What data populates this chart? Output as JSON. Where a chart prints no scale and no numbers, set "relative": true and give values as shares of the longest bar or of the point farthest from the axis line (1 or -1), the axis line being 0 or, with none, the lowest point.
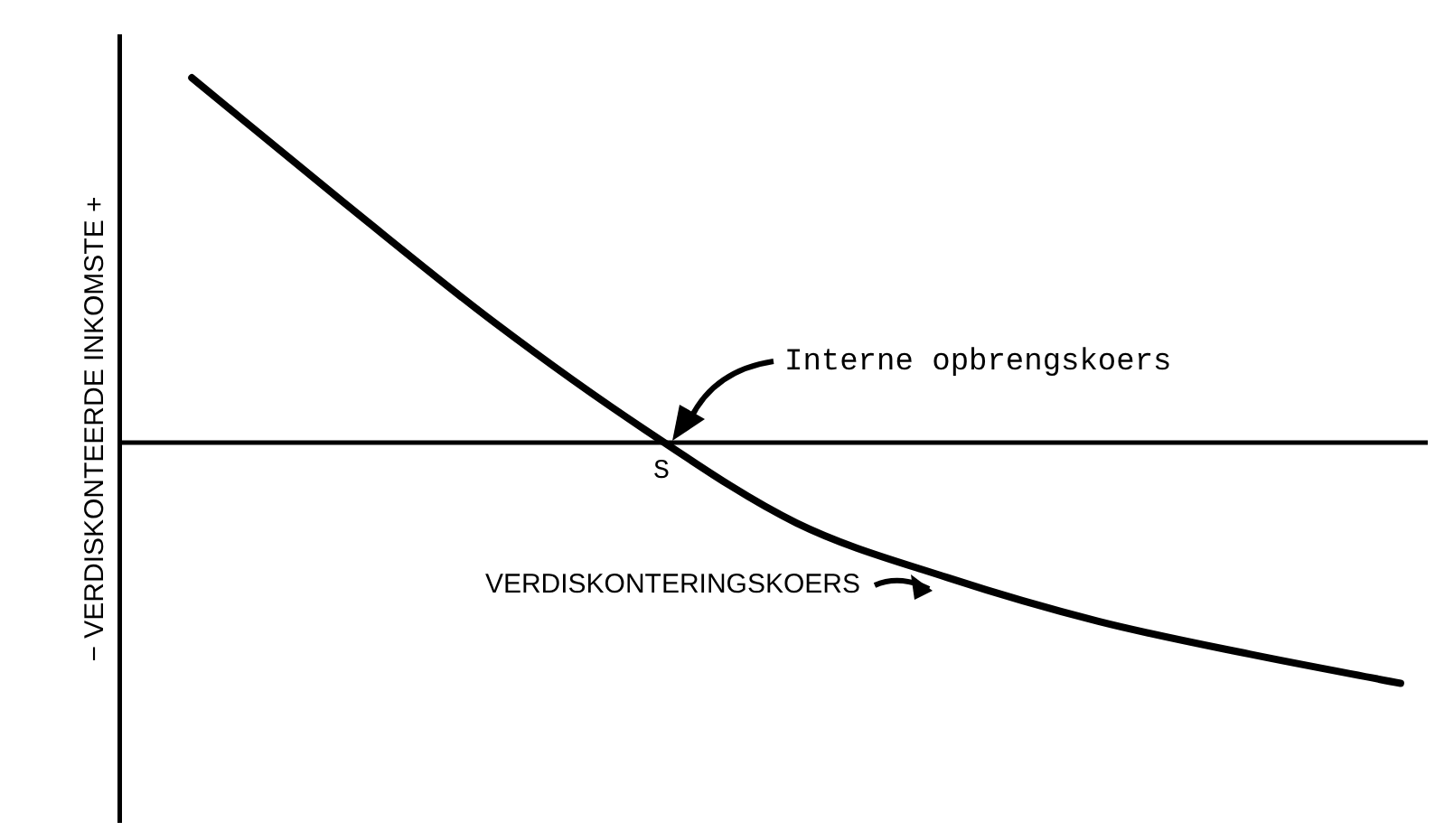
{
  "chart_data": {
    "type": "line",
    "relative": true,
    "ylabel": "− VERDISKONTEERDE INKOMSTE +",
    "xlabel": "VERDISKONTERINGSKOERS",
    "categories": [
      null,
      null,
      null,
      null,
      null,
      null,
      null,
      null,
      null
    ],
    "series": [
      {
        "color": "#000000",
        "values": [
          1,
          0.66,
          0.33,
          0.035,
          -0.22,
          -0.37,
          -0.49,
          -0.58,
          -0.66
        ]
      }
    ],
    "annotations": [
      "Interne opbrengskoers",
      "S"
    ],
    "marker": "none",
    "line_style": "solid",
    "legend": false,
    "grid": false
  }
}
